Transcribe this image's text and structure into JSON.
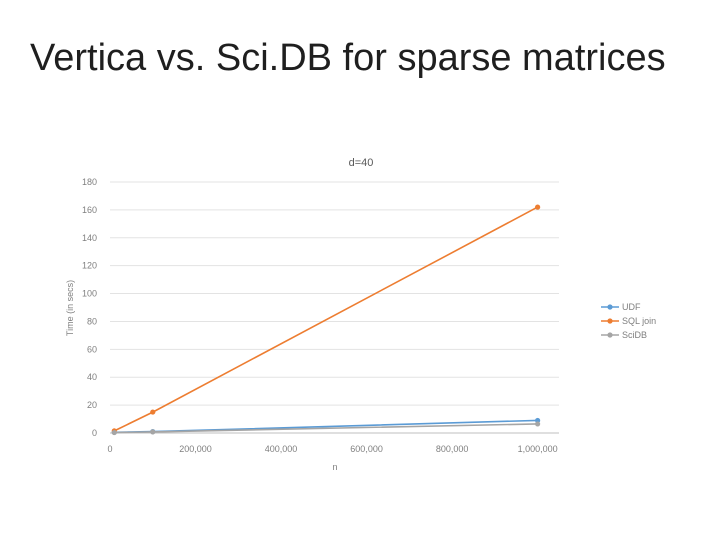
{
  "slide": {
    "title": "Vertica vs. Sci.DB for sparse matrices"
  },
  "chart_data": {
    "type": "line",
    "title": "d=40",
    "xlabel": "n",
    "ylabel": "Time (in secs)",
    "xlim": [
      0,
      1050000
    ],
    "ylim": [
      0,
      180
    ],
    "x_ticks": [
      0,
      200000,
      400000,
      600000,
      800000,
      1000000
    ],
    "x_tick_labels": [
      "0",
      "200,000",
      "400,000",
      "600,000",
      "800,000",
      "1,000,000"
    ],
    "y_ticks": [
      0,
      20,
      40,
      60,
      80,
      100,
      120,
      140,
      160,
      180
    ],
    "y_tick_labels": [
      "0",
      "20",
      "40",
      "60",
      "80",
      "100",
      "120",
      "140",
      "160",
      "180"
    ],
    "grid": "horizontal",
    "legend_position": "right",
    "x": [
      10000,
      100000,
      1000000
    ],
    "series": [
      {
        "name": "UDF",
        "color": "#5b9bd5",
        "values": [
          0.5,
          1,
          9
        ]
      },
      {
        "name": "SQL join",
        "color": "#ed7d31",
        "values": [
          1.5,
          15,
          162
        ]
      },
      {
        "name": "SciDB",
        "color": "#a5a5a5",
        "values": [
          0.3,
          0.8,
          6.5
        ]
      }
    ]
  }
}
